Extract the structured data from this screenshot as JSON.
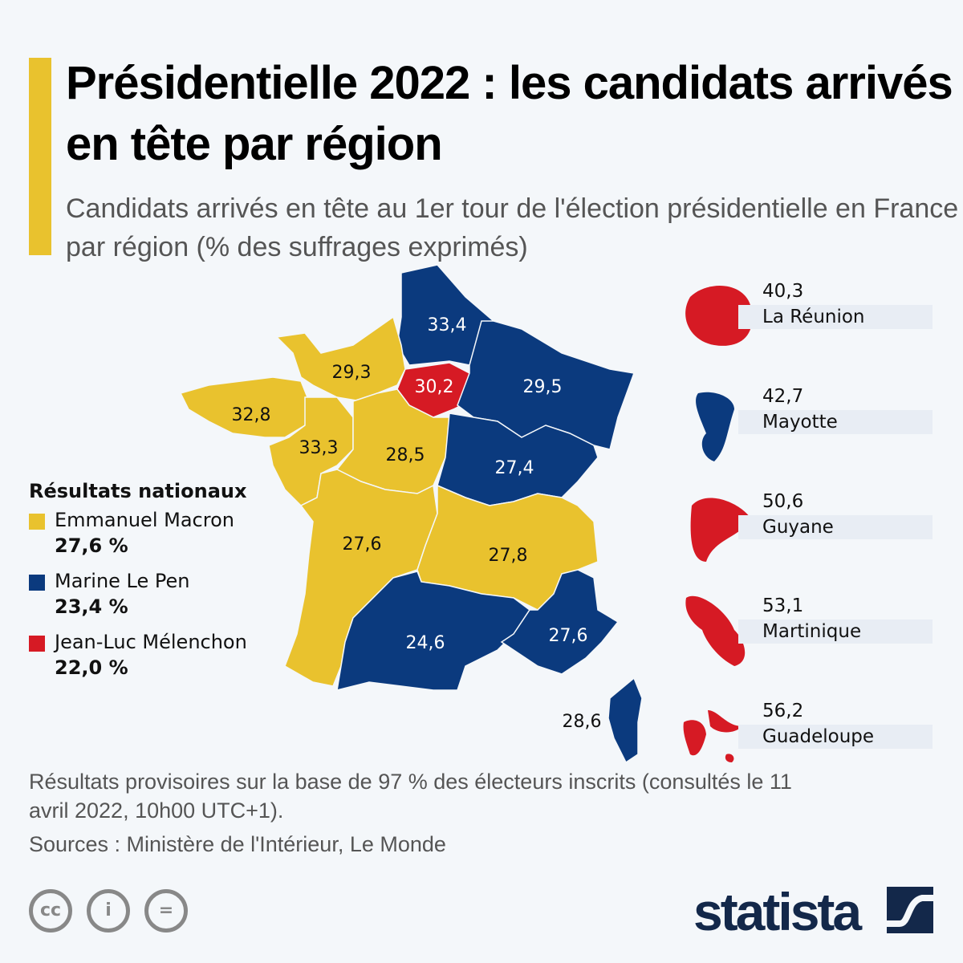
{
  "title": "Présidentielle 2022 : les candidats arrivés en tête par région",
  "subtitle": "Candidats arrivés en tête au 1er tour de l'élection présidentielle en France par région (% des suffrages exprimés)",
  "colors": {
    "macron": "#E9C22E",
    "le_pen": "#0B3A7E",
    "melenchon": "#D61A24",
    "background": "#F4F7FA"
  },
  "legend": {
    "title": "Résultats nationaux",
    "items": [
      {
        "name": "Emmanuel Macron",
        "value": "27,6 %",
        "color": "#E9C22E"
      },
      {
        "name": "Marine Le Pen",
        "value": "23,4 %",
        "color": "#0B3A7E"
      },
      {
        "name": "Jean-Luc Mélenchon",
        "value": "22,0 %",
        "color": "#D61A24"
      }
    ]
  },
  "regions": [
    {
      "region": "Hauts-de-France",
      "value": "33,4",
      "leader": "le_pen"
    },
    {
      "region": "Normandie",
      "value": "29,3",
      "leader": "macron"
    },
    {
      "region": "Île-de-France",
      "value": "30,2",
      "leader": "melenchon"
    },
    {
      "region": "Grand Est",
      "value": "29,5",
      "leader": "le_pen"
    },
    {
      "region": "Bretagne",
      "value": "32,8",
      "leader": "macron"
    },
    {
      "region": "Pays de la Loire",
      "value": "33,3",
      "leader": "macron"
    },
    {
      "region": "Centre-Val de Loire",
      "value": "28,5",
      "leader": "macron"
    },
    {
      "region": "Bourgogne-Franche-Comté",
      "value": "27,4",
      "leader": "le_pen"
    },
    {
      "region": "Nouvelle-Aquitaine",
      "value": "27,6",
      "leader": "macron"
    },
    {
      "region": "Auvergne-Rhône-Alpes",
      "value": "27,8",
      "leader": "macron"
    },
    {
      "region": "Occitanie",
      "value": "24,6",
      "leader": "le_pen"
    },
    {
      "region": "Provence-Alpes-Côte d'Azur",
      "value": "27,6",
      "leader": "le_pen"
    },
    {
      "region": "Corse",
      "value": "28,6",
      "leader": "le_pen"
    }
  ],
  "overseas": [
    {
      "name": "La Réunion",
      "value": "40,3",
      "leader": "melenchon"
    },
    {
      "name": "Mayotte",
      "value": "42,7",
      "leader": "le_pen"
    },
    {
      "name": "Guyane",
      "value": "50,6",
      "leader": "melenchon"
    },
    {
      "name": "Martinique",
      "value": "53,1",
      "leader": "melenchon"
    },
    {
      "name": "Guadeloupe",
      "value": "56,2",
      "leader": "melenchon"
    }
  ],
  "footnote": "Résultats provisoires sur la base de 97 % des électeurs inscrits (consultés le 11 avril 2022, 10h00 UTC+1).",
  "sources": "Sources : Ministère de l'Intérieur, Le Monde",
  "brand": "statista",
  "license_icons": [
    "cc-icon",
    "attribution-icon",
    "no-derivatives-icon"
  ]
}
